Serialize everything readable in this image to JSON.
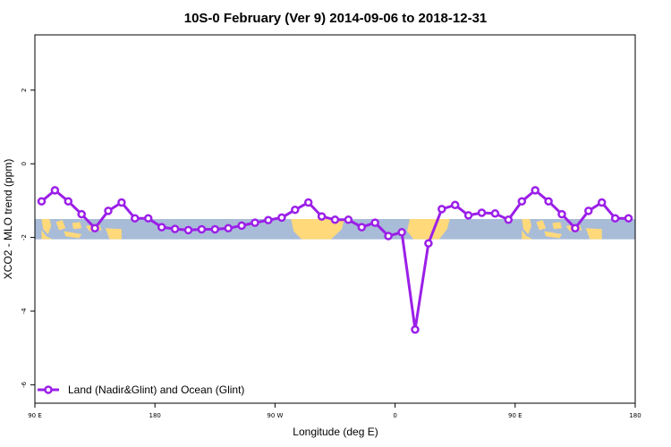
{
  "chart_data": {
    "type": "line",
    "title": "10S-0 February (Ver 9)   2014-09-06 to 2018-12-31",
    "xlabel": "Longitude (deg E)",
    "ylabel": "XCO2 - MLO trend (ppm)",
    "ylim": [
      -6.5,
      3.5
    ],
    "y_ticks": [
      2,
      0,
      -2,
      -4,
      -6
    ],
    "x_ticks": [
      {
        "label": "90 E",
        "value": 0
      },
      {
        "label": "180",
        "value": 90
      },
      {
        "label": "90 W",
        "value": 180
      },
      {
        "label": "0",
        "value": 270
      },
      {
        "label": "90 E",
        "value": 360
      },
      {
        "label": "180",
        "value": 450
      }
    ],
    "xlim": [
      0,
      450
    ],
    "grid": false,
    "legend_position": "bottom-left",
    "line_color": "#9B1FE8",
    "band": {
      "y_top": -1.5,
      "y_bottom": -2.05,
      "ocean_color": "#A8BCD8",
      "land_color": "#FFD97A"
    },
    "series": [
      {
        "name": "Land (Nadir&Glint) and Ocean (Glint)",
        "x": [
          5,
          15,
          25,
          35,
          45,
          55,
          65,
          75,
          85,
          95,
          105,
          115,
          125,
          135,
          145,
          155,
          165,
          175,
          185,
          195,
          205,
          215,
          225,
          235,
          245,
          255,
          265,
          275,
          285,
          295,
          305,
          315,
          325,
          335,
          345,
          355,
          365,
          375,
          385,
          395,
          405,
          415,
          425,
          435,
          445
        ],
        "y": [
          -1.02,
          -0.72,
          -1.02,
          -1.37,
          -1.75,
          -1.28,
          -1.05,
          -1.48,
          -1.48,
          -1.72,
          -1.77,
          -1.8,
          -1.78,
          -1.78,
          -1.75,
          -1.68,
          -1.6,
          -1.53,
          -1.46,
          -1.25,
          -1.05,
          -1.43,
          -1.52,
          -1.52,
          -1.72,
          -1.6,
          -1.96,
          -1.86,
          -4.5,
          -2.16,
          -1.23,
          -1.12,
          -1.4,
          -1.33,
          -1.35,
          -1.52,
          -1.02,
          -0.72,
          -1.02,
          -1.37,
          -1.75,
          -1.28,
          -1.05,
          -1.48,
          -1.48
        ]
      }
    ]
  }
}
